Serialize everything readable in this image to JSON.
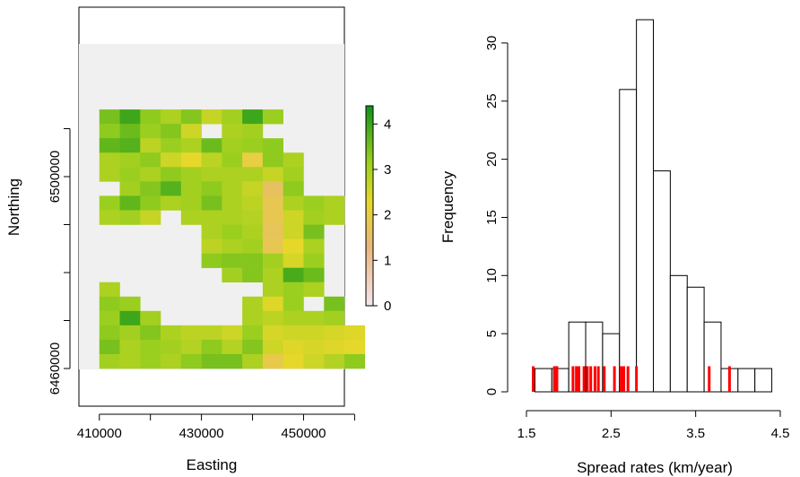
{
  "chart_data": [
    {
      "type": "heatmap",
      "xlabel": "Easting",
      "ylabel": "Northing",
      "x_ticks": [
        410000,
        420000,
        430000,
        440000,
        450000,
        460000
      ],
      "x_tick_labels": [
        "410000",
        "430000",
        "450000"
      ],
      "y_ticks": [
        6460000,
        6470000,
        6480000,
        6490000,
        6500000,
        6510000
      ],
      "y_tick_labels": [
        "6460000",
        "6500000"
      ],
      "cell_size": 4000,
      "grid_origin": {
        "easting": 406000,
        "northing": 6466000
      },
      "raster_extent": {
        "easting": [
          406000,
          458000
        ],
        "northing": [
          6460000,
          6518000
        ]
      },
      "grid_rows_top_to_bottom": [
        [
          3.5,
          4.0,
          3.3,
          3.0,
          3.4,
          2.7,
          3.1,
          4.0,
          3.2,
          null,
          null,
          null,
          null
        ],
        [
          3.3,
          3.6,
          3.2,
          3.4,
          2.6,
          null,
          3.0,
          3.1,
          null,
          null,
          null,
          null,
          null
        ],
        [
          3.7,
          3.8,
          2.8,
          3.2,
          3.0,
          3.6,
          3.1,
          3.2,
          3.3,
          null,
          null,
          null,
          null
        ],
        [
          3.0,
          3.1,
          3.3,
          2.6,
          2.3,
          2.8,
          3.2,
          2.0,
          3.3,
          3.0,
          null,
          null,
          null
        ],
        [
          3.0,
          3.2,
          3.0,
          3.3,
          3.1,
          3.0,
          3.0,
          3.0,
          2.7,
          3.1,
          null,
          null,
          null
        ],
        [
          null,
          3.1,
          3.4,
          3.8,
          3.1,
          3.3,
          3.0,
          2.7,
          1.6,
          3.3,
          null,
          null,
          null
        ],
        [
          3.2,
          3.7,
          3.3,
          3.0,
          3.1,
          3.5,
          3.0,
          2.8,
          1.8,
          3.0,
          3.2,
          3.0,
          null
        ],
        [
          3.0,
          3.1,
          2.7,
          null,
          3.0,
          3.0,
          3.0,
          2.9,
          1.8,
          2.6,
          3.1,
          3.0,
          null
        ],
        [
          null,
          null,
          null,
          null,
          null,
          3.0,
          3.2,
          3.0,
          1.7,
          2.6,
          3.5,
          null,
          null
        ],
        [
          null,
          null,
          null,
          null,
          null,
          2.8,
          3.0,
          3.1,
          1.8,
          2.3,
          3.0,
          null,
          null
        ],
        [
          null,
          null,
          null,
          null,
          null,
          3.3,
          3.4,
          3.4,
          3.1,
          2.5,
          3.2,
          null,
          null
        ],
        [
          null,
          null,
          null,
          null,
          null,
          null,
          3.1,
          3.4,
          3.0,
          3.9,
          3.6,
          null,
          null
        ],
        [
          3.0,
          null,
          null,
          null,
          null,
          null,
          null,
          null,
          3.0,
          3.2,
          3.0,
          null,
          null
        ],
        [
          3.3,
          3.2,
          null,
          null,
          null,
          null,
          null,
          3.0,
          2.4,
          3.2,
          null,
          3.5,
          null
        ],
        [
          3.2,
          4.0,
          3.1,
          null,
          null,
          null,
          null,
          3.0,
          2.8,
          3.0,
          3.0,
          3.1,
          null
        ],
        [
          3.3,
          3.1,
          3.4,
          3.0,
          2.8,
          2.8,
          2.6,
          3.2,
          2.5,
          2.6,
          2.6,
          2.5,
          2.4
        ],
        [
          3.5,
          3.0,
          3.2,
          3.1,
          2.9,
          3.3,
          2.9,
          3.4,
          2.6,
          2.4,
          2.5,
          2.4,
          2.3
        ],
        [
          3.1,
          3.0,
          3.2,
          3.0,
          3.3,
          3.5,
          3.5,
          3.0,
          1.9,
          2.3,
          2.6,
          2.9,
          3.3
        ]
      ],
      "colorbar": {
        "ticks": [
          0,
          1,
          2,
          3,
          4
        ],
        "range": [
          0,
          4.4
        ],
        "colors": {
          "low": "#f5e4ea",
          "mid_low": "#e8b679",
          "mid": "#e6d82a",
          "mid_high": "#9bcf1f",
          "high": "#0f9218"
        }
      },
      "background_color": "#f0f0f0"
    },
    {
      "type": "bar",
      "subtype": "histogram",
      "xlabel": "Spread rates (km/year)",
      "ylabel": "Frequency",
      "bins": [
        {
          "from": 1.5,
          "to": 1.6,
          "count": 0
        },
        {
          "from": 1.6,
          "to": 1.8,
          "count": 2
        },
        {
          "from": 1.8,
          "to": 2.0,
          "count": 2
        },
        {
          "from": 2.0,
          "to": 2.2,
          "count": 6
        },
        {
          "from": 2.2,
          "to": 2.4,
          "count": 6
        },
        {
          "from": 2.4,
          "to": 2.6,
          "count": 5
        },
        {
          "from": 2.6,
          "to": 2.8,
          "count": 26
        },
        {
          "from": 2.8,
          "to": 3.0,
          "count": 32
        },
        {
          "from": 3.0,
          "to": 3.2,
          "count": 19
        },
        {
          "from": 3.2,
          "to": 3.4,
          "count": 10
        },
        {
          "from": 3.4,
          "to": 3.6,
          "count": 9
        },
        {
          "from": 3.6,
          "to": 3.8,
          "count": 6
        },
        {
          "from": 3.8,
          "to": 4.0,
          "count": 2
        },
        {
          "from": 4.0,
          "to": 4.2,
          "count": 2
        },
        {
          "from": 4.2,
          "to": 4.4,
          "count": 2
        }
      ],
      "rug": [
        1.58,
        1.83,
        1.85,
        1.86,
        2.05,
        2.09,
        2.12,
        2.18,
        2.22,
        2.26,
        2.31,
        2.35,
        2.42,
        2.54,
        2.62,
        2.65,
        2.7,
        2.8,
        3.66,
        3.9
      ],
      "rug_color": "#ff0000",
      "xlim": [
        1.5,
        4.5
      ],
      "ylim": [
        0,
        32
      ],
      "x_ticks": [
        1.5,
        2.5,
        3.5,
        4.5
      ],
      "x_tick_labels": [
        "1.5",
        "2.5",
        "3.5",
        "4.5"
      ],
      "y_ticks": [
        0,
        5,
        10,
        15,
        20,
        25,
        30
      ],
      "y_tick_labels": [
        "0",
        "5",
        "10",
        "15",
        "20",
        "25",
        "30"
      ]
    }
  ]
}
